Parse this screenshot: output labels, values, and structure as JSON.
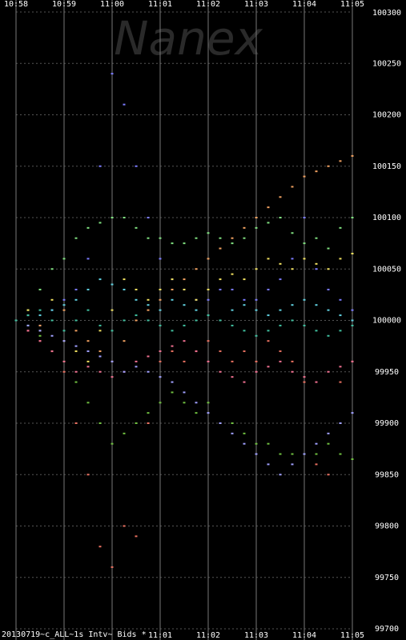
{
  "chart_data": {
    "type": "scatter",
    "watermark": "Nanex",
    "footer": "20130719~c_ALL~1s Intv~ Bids *",
    "xlim": [
      0,
      7
    ],
    "xticks": [
      {
        "value": 0,
        "label": "10:58"
      },
      {
        "value": 1,
        "label": "10:59"
      },
      {
        "value": 2,
        "label": "11:00"
      },
      {
        "value": 3,
        "label": "11:01"
      },
      {
        "value": 4,
        "label": "11:02"
      },
      {
        "value": 5,
        "label": "11:03"
      },
      {
        "value": 6,
        "label": "11:04"
      },
      {
        "value": 7,
        "label": "11:05"
      }
    ],
    "ylim": [
      99700,
      100300
    ],
    "yticks": [
      99700,
      99750,
      99800,
      99850,
      99900,
      99950,
      100000,
      100050,
      100100,
      100150,
      100200,
      100250,
      100300
    ],
    "grid": true,
    "x": [
      0,
      0.25,
      0.5,
      0.75,
      1,
      1.25,
      1.5,
      1.75,
      2,
      2.25,
      2.5,
      2.75,
      3,
      3.25,
      3.5,
      3.75,
      4,
      4.25,
      4.5,
      4.75,
      5,
      5.25,
      5.5,
      5.75,
      6,
      6.25,
      6.5,
      6.75,
      7
    ],
    "series": [
      {
        "color": "#7b7bff",
        "values": [
          100000,
          100005,
          99995,
          100010,
          100020,
          100030,
          100060,
          100150,
          100240,
          100210,
          100150,
          100100,
          100060,
          100040,
          100030,
          100020,
          100020,
          100030,
          100030,
          100020,
          100020,
          100030,
          100040,
          100060,
          100100,
          100050,
          100030,
          100020,
          100010
        ]
      },
      {
        "color": "#e87060",
        "values": [
          100000,
          99990,
          99980,
          99970,
          99950,
          99900,
          99850,
          99780,
          99760,
          99800,
          99790,
          99900,
          99960,
          99970,
          99960,
          99970,
          99980,
          99970,
          99960,
          99970,
          99960,
          99980,
          99970,
          99960,
          99940,
          99860,
          99850,
          99940,
          99960
        ]
      },
      {
        "color": "#70c040",
        "values": [
          100000,
          99995,
          99985,
          99970,
          99960,
          99940,
          99920,
          99900,
          99880,
          99890,
          99900,
          99910,
          99920,
          99930,
          99920,
          99910,
          99920,
          99900,
          99900,
          99890,
          99880,
          99880,
          99870,
          99870,
          99870,
          99870,
          99880,
          99870,
          99865
        ]
      },
      {
        "color": "#80e080",
        "values": [
          100000,
          100010,
          100030,
          100050,
          100060,
          100080,
          100090,
          100095,
          100100,
          100100,
          100090,
          100080,
          100080,
          100075,
          100075,
          100080,
          100085,
          100080,
          100075,
          100080,
          100090,
          100095,
          100100,
          100085,
          100075,
          100080,
          100070,
          100090,
          100100
        ]
      },
      {
        "color": "#f0e060",
        "values": [
          100000,
          100010,
          99990,
          100020,
          99980,
          99970,
          99960,
          99990,
          100010,
          100040,
          100030,
          100020,
          100030,
          100040,
          100030,
          100020,
          100030,
          100040,
          100045,
          100040,
          100050,
          100060,
          100055,
          100050,
          100060,
          100055,
          100050,
          100060,
          100065
        ]
      },
      {
        "color": "#60d0e0",
        "values": [
          100000,
          99995,
          100005,
          100010,
          100015,
          100020,
          100030,
          100040,
          100035,
          100030,
          100020,
          100015,
          100010,
          100020,
          100015,
          100010,
          100005,
          100000,
          100010,
          100015,
          100010,
          100005,
          100010,
          100015,
          100020,
          100015,
          100010,
          100005,
          100000
        ]
      },
      {
        "color": "#f0a060",
        "values": [
          100000,
          100005,
          99995,
          100000,
          100010,
          99990,
          99980,
          99970,
          99960,
          99980,
          100000,
          100010,
          100020,
          100030,
          100040,
          100050,
          100060,
          100070,
          100080,
          100090,
          100100,
          100110,
          100120,
          100130,
          100140,
          100145,
          100150,
          100155,
          100160
        ]
      },
      {
        "color": "#f07090",
        "values": [
          100000,
          99990,
          99980,
          99970,
          99960,
          99950,
          99955,
          99950,
          99945,
          99950,
          99960,
          99965,
          99970,
          99975,
          99980,
          99970,
          99960,
          99950,
          99945,
          99940,
          99950,
          99955,
          99960,
          99950,
          99945,
          99940,
          99950,
          99955,
          99960
        ]
      },
      {
        "color": "#a0a0ff",
        "values": [
          100000,
          99995,
          99990,
          99985,
          99980,
          99975,
          99970,
          99965,
          99960,
          99950,
          99955,
          99950,
          99945,
          99940,
          99930,
          99920,
          99910,
          99900,
          99890,
          99880,
          99870,
          99860,
          99850,
          99860,
          99870,
          99880,
          99890,
          99900,
          99910
        ]
      },
      {
        "color": "#40c0a0",
        "values": [
          100000,
          100005,
          100010,
          100000,
          99990,
          100000,
          100010,
          99995,
          99990,
          100000,
          100005,
          100000,
          99995,
          99990,
          99995,
          100000,
          100005,
          100000,
          99995,
          99990,
          99985,
          99990,
          99995,
          100000,
          99995,
          99990,
          99985,
          99990,
          99995
        ]
      }
    ]
  }
}
